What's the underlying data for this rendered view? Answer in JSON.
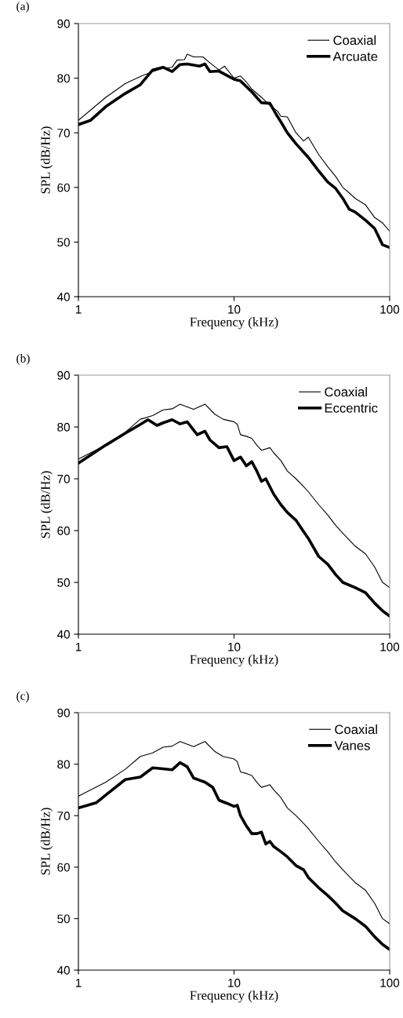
{
  "chart_data": [
    {
      "type": "line",
      "title": "(a)",
      "xlabel": "Frequency (kHz)",
      "ylabel": "SPL (dB/Hz)",
      "log": "x",
      "xlim": [
        1,
        100
      ],
      "xticks": [
        1,
        10,
        100
      ],
      "ylim": [
        40,
        90
      ],
      "yticks": [
        40,
        50,
        60,
        70,
        80,
        90
      ],
      "legend": "top right",
      "grid": false,
      "marker": "none",
      "line_style": "solid",
      "series": [
        {
          "name": "Coaxial",
          "color": "#000000",
          "x": [
            1,
            1.5,
            2,
            2.5,
            3,
            3.5,
            4,
            4.3,
            4.8,
            5,
            5.5,
            6.3,
            7,
            8,
            8.7,
            9.5,
            10,
            11,
            12,
            13,
            15,
            17,
            19,
            20,
            22,
            25,
            28,
            30,
            35,
            40,
            45,
            50,
            55,
            60,
            70,
            80,
            90,
            100
          ],
          "values": [
            72.3,
            76.5,
            79,
            80.3,
            81.2,
            81.8,
            82,
            83.3,
            83.4,
            84.4,
            83.9,
            83.9,
            82.8,
            81.5,
            82.2,
            80.8,
            80,
            80.4,
            79.3,
            78,
            76.5,
            75,
            74,
            73,
            72.9,
            70,
            68.5,
            69.2,
            66,
            63.8,
            62,
            60,
            59,
            58,
            56.8,
            54.5,
            53.5,
            52
          ]
        },
        {
          "name": "Arcuate",
          "color": "#000000",
          "x": [
            1,
            1.2,
            1.5,
            2,
            2.5,
            3,
            3.5,
            4,
            4.5,
            5,
            6,
            6.5,
            7,
            8,
            9,
            10,
            11,
            13,
            15,
            17,
            19,
            20,
            22,
            25,
            30,
            35,
            40,
            45,
            50,
            55,
            60,
            70,
            80,
            90,
            100
          ],
          "values": [
            71.5,
            72.3,
            74.8,
            77.2,
            78.8,
            81.5,
            82,
            81.2,
            82.5,
            82.6,
            82.2,
            82.6,
            81.2,
            81.3,
            80.5,
            79.8,
            79.5,
            77.5,
            75.5,
            75.4,
            73,
            72,
            70,
            68,
            65.5,
            63,
            61,
            59.8,
            58,
            56,
            55.5,
            54,
            52.5,
            49.5,
            49
          ]
        }
      ]
    },
    {
      "type": "line",
      "title": "(b)",
      "xlabel": "Frequency (kHz)",
      "ylabel": "SPL (dB/Hz)",
      "log": "x",
      "xlim": [
        1,
        100
      ],
      "xticks": [
        1,
        10,
        100
      ],
      "ylim": [
        40,
        90
      ],
      "yticks": [
        40,
        50,
        60,
        70,
        80,
        90
      ],
      "legend": "top right",
      "grid": false,
      "marker": "none",
      "line_style": "solid",
      "series": [
        {
          "name": "Coaxial",
          "color": "#000000",
          "x": [
            1,
            1.5,
            2,
            2.5,
            3,
            3.5,
            4,
            4.5,
            5.5,
            6.5,
            7.5,
            8.5,
            10,
            10.5,
            11,
            12,
            13,
            14,
            15,
            17,
            18,
            20,
            22,
            25,
            28,
            30,
            35,
            40,
            45,
            50,
            60,
            70,
            80,
            90,
            100
          ],
          "values": [
            73.8,
            76.5,
            79,
            81.5,
            82.2,
            83.3,
            83.5,
            84.4,
            83.4,
            84.4,
            82.5,
            81.5,
            81,
            80.5,
            78.5,
            78.2,
            77.8,
            76.5,
            75.5,
            76,
            75,
            73.5,
            71.5,
            70,
            68.5,
            67.5,
            65,
            63,
            61,
            59.5,
            57,
            55.5,
            53,
            50,
            49
          ]
        },
        {
          "name": "Eccentric",
          "color": "#000000",
          "x": [
            1,
            1.5,
            2,
            2.5,
            2.8,
            3.2,
            3.5,
            4,
            4.5,
            5,
            5.8,
            6.5,
            7,
            8,
            9,
            10,
            11,
            12,
            13,
            14,
            15,
            16,
            18,
            20,
            22,
            25,
            27,
            30,
            35,
            40,
            45,
            50,
            60,
            70,
            80,
            90,
            100
          ],
          "values": [
            73,
            76.5,
            78.8,
            80.5,
            81.4,
            80.3,
            80.8,
            81.4,
            80.6,
            81,
            78.5,
            79.2,
            77.5,
            76,
            76.2,
            73.5,
            74.2,
            72.5,
            73.3,
            71.5,
            69.5,
            70,
            67,
            65,
            63.5,
            62,
            60.5,
            58.5,
            55,
            53.5,
            51.5,
            50,
            49,
            48,
            46,
            44.5,
            43.5
          ]
        }
      ]
    },
    {
      "type": "line",
      "title": "(c)",
      "xlabel": "Frequency (kHz)",
      "ylabel": "SPL (dB/Hz)",
      "log": "x",
      "xlim": [
        1,
        100
      ],
      "xticks": [
        1,
        10,
        100
      ],
      "ylim": [
        40,
        90
      ],
      "yticks": [
        40,
        50,
        60,
        70,
        80,
        90
      ],
      "legend": "top right",
      "grid": false,
      "marker": "none",
      "line_style": "solid",
      "series": [
        {
          "name": "Coaxial",
          "color": "#000000",
          "x": [
            1,
            1.5,
            2,
            2.5,
            3,
            3.5,
            4,
            4.5,
            5.5,
            6.5,
            7.5,
            8.5,
            10,
            10.5,
            11,
            12,
            13,
            14,
            15,
            17,
            18,
            20,
            22,
            25,
            28,
            30,
            35,
            40,
            45,
            50,
            60,
            70,
            80,
            90,
            100
          ],
          "values": [
            73.8,
            76.5,
            79,
            81.5,
            82.2,
            83.3,
            83.5,
            84.4,
            83.4,
            84.4,
            82.5,
            81.5,
            81,
            80.5,
            78.5,
            78.2,
            77.8,
            76.5,
            75.5,
            76,
            75,
            73.5,
            71.5,
            70,
            68.5,
            67.5,
            65,
            63,
            61,
            59.5,
            57,
            55.5,
            53,
            50,
            49
          ]
        },
        {
          "name": "Vanes",
          "color": "#000000",
          "x": [
            1,
            1.3,
            1.5,
            2,
            2.5,
            3,
            3.5,
            4,
            4.5,
            5,
            5.5,
            6.5,
            7.3,
            8,
            9,
            10,
            10.5,
            11,
            12,
            13,
            14,
            15,
            16,
            17,
            18,
            20,
            22,
            25,
            28,
            30,
            35,
            40,
            45,
            50,
            60,
            70,
            80,
            90,
            100
          ],
          "values": [
            71.5,
            72.5,
            74,
            77,
            77.5,
            79.3,
            79.1,
            78.9,
            80.3,
            79.5,
            77.3,
            76.5,
            75.5,
            73,
            72.4,
            71.8,
            72,
            70,
            68,
            66.5,
            66.5,
            66.8,
            64.5,
            65,
            64,
            63,
            62,
            60.3,
            59.5,
            58,
            56,
            54.5,
            53,
            51.5,
            50,
            48.5,
            46.5,
            45,
            44
          ]
        }
      ]
    }
  ]
}
